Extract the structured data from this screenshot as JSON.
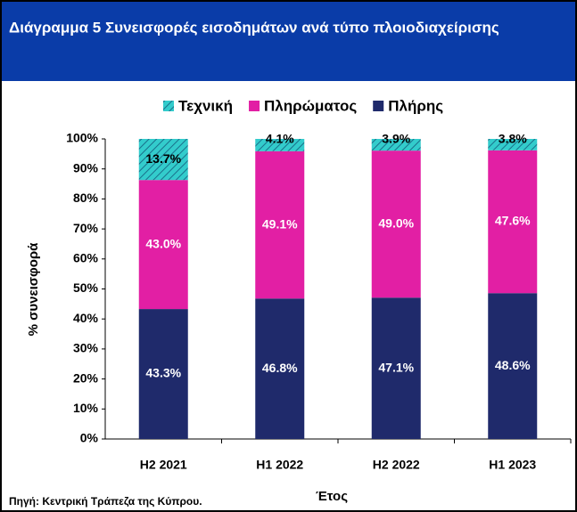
{
  "chart_data": {
    "type": "stacked_bar",
    "title": "Διάγραμμα 5  Συνεισφορές εισοδημάτων ανά τύπο πλοιοδιαχείρισης",
    "categories": [
      "H2 2021",
      "H1 2022",
      "H2 2022",
      "H1 2023"
    ],
    "series": [
      {
        "name": "Πλήρης",
        "color": "#1f2a6b",
        "values": [
          43.3,
          46.8,
          47.1,
          48.6
        ],
        "value_labels": [
          "43.3%",
          "46.8%",
          "47.1%",
          "48.6%"
        ]
      },
      {
        "name": "Πληρώματος",
        "color": "#e21fa4",
        "values": [
          43.0,
          49.1,
          49.0,
          47.6
        ],
        "value_labels": [
          "43.0%",
          "49.1%",
          "49.0%",
          "47.6%"
        ]
      },
      {
        "name": "Τεχνική",
        "color": "#33cccc",
        "pattern": "hatch",
        "values": [
          13.7,
          4.1,
          3.9,
          3.8
        ],
        "value_labels": [
          "13.7%",
          "4.1%",
          "3.9%",
          "3.8%"
        ]
      }
    ],
    "ylim": [
      0,
      100
    ],
    "yticks": [
      {
        "value": 0,
        "label": "0%"
      },
      {
        "value": 10,
        "label": "10%"
      },
      {
        "value": 20,
        "label": "20%"
      },
      {
        "value": 30,
        "label": "30%"
      },
      {
        "value": 40,
        "label": "40%"
      },
      {
        "value": 50,
        "label": "50%"
      },
      {
        "value": 60,
        "label": "60%"
      },
      {
        "value": 70,
        "label": "70%"
      },
      {
        "value": 80,
        "label": "80%"
      },
      {
        "value": 90,
        "label": "90%"
      },
      {
        "value": 100,
        "label": "100%"
      }
    ],
    "y_label": "% συνεισφορά",
    "x_label": "Έτος",
    "source": "Πηγή: Κεντρική Τράπεζα της Κύπρου.",
    "legend": "top",
    "grid": false
  }
}
